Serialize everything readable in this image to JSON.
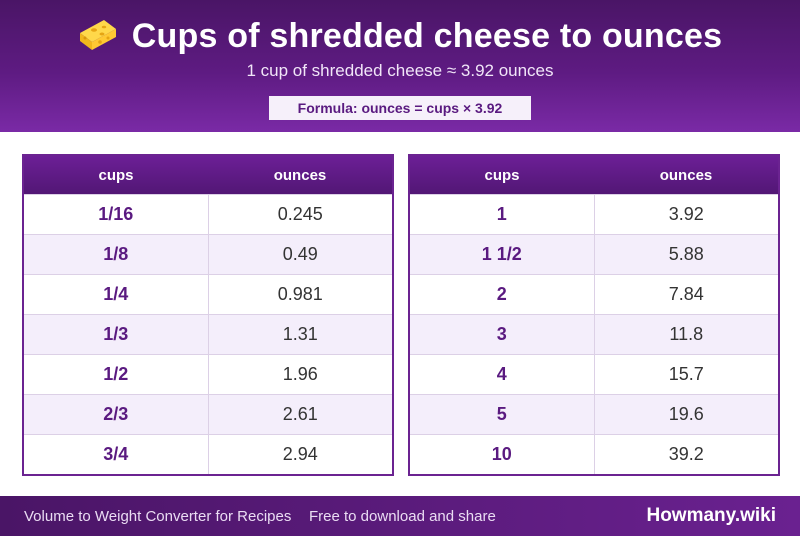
{
  "header": {
    "icon": "cheese-icon",
    "title": "Cups of shredded cheese to ounces",
    "subtitle": "1 cup of shredded cheese ≈ 3.92 ounces",
    "formula": "Formula: ounces = cups × 3.92"
  },
  "table_left": {
    "headers": [
      "cups",
      "ounces"
    ],
    "rows": [
      {
        "cups": "1/16",
        "ounces": "0.245"
      },
      {
        "cups": "1/8",
        "ounces": "0.49"
      },
      {
        "cups": "1/4",
        "ounces": "0.981"
      },
      {
        "cups": "1/3",
        "ounces": "1.31"
      },
      {
        "cups": "1/2",
        "ounces": "1.96"
      },
      {
        "cups": "2/3",
        "ounces": "2.61"
      },
      {
        "cups": "3/4",
        "ounces": "2.94"
      }
    ]
  },
  "table_right": {
    "headers": [
      "cups",
      "ounces"
    ],
    "rows": [
      {
        "cups": "1",
        "ounces": "3.92"
      },
      {
        "cups": "1 1/2",
        "ounces": "5.88"
      },
      {
        "cups": "2",
        "ounces": "7.84"
      },
      {
        "cups": "3",
        "ounces": "11.8"
      },
      {
        "cups": "4",
        "ounces": "15.7"
      },
      {
        "cups": "5",
        "ounces": "19.6"
      },
      {
        "cups": "10",
        "ounces": "39.2"
      }
    ]
  },
  "footer": {
    "left_text": "Volume to Weight Converter for Recipes",
    "middle_text": "Free to download and share",
    "brand": "Howmany.wiki"
  },
  "colors": {
    "primary": "#5e1b82",
    "accent": "#6b2391",
    "row_alt": "#f4eefb"
  }
}
